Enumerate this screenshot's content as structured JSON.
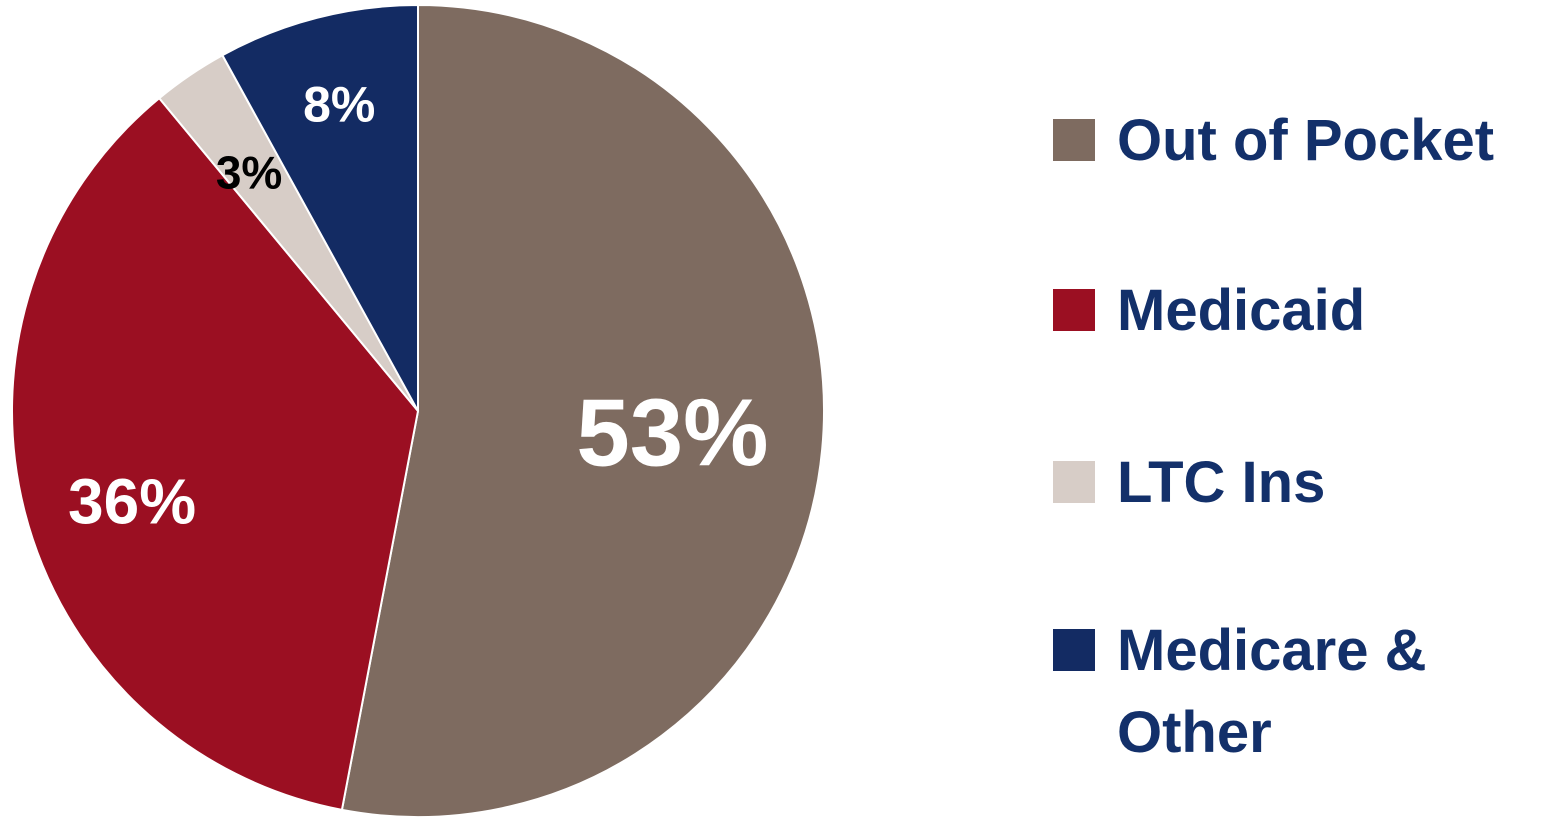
{
  "chart_data": {
    "type": "pie",
    "title": "",
    "unit": "%",
    "slices": [
      {
        "label": "Out of Pocket",
        "value": 53,
        "display": "53%",
        "color": "#7e6b60",
        "text_color": "#ffffff"
      },
      {
        "label": "Medicaid",
        "value": 36,
        "display": "36%",
        "color": "#9b0f22",
        "text_color": "#ffffff"
      },
      {
        "label": "LTC Ins",
        "value": 3,
        "display": "3%",
        "color": "#d7cdc7",
        "text_color": "#000000"
      },
      {
        "label": "Medicare & Other",
        "value": 8,
        "display": "8%",
        "color": "#132b63",
        "text_color": "#ffffff"
      }
    ],
    "start": "top",
    "direction": "clockwise",
    "legend_position": "right",
    "legend_text_color": "#13306a"
  }
}
